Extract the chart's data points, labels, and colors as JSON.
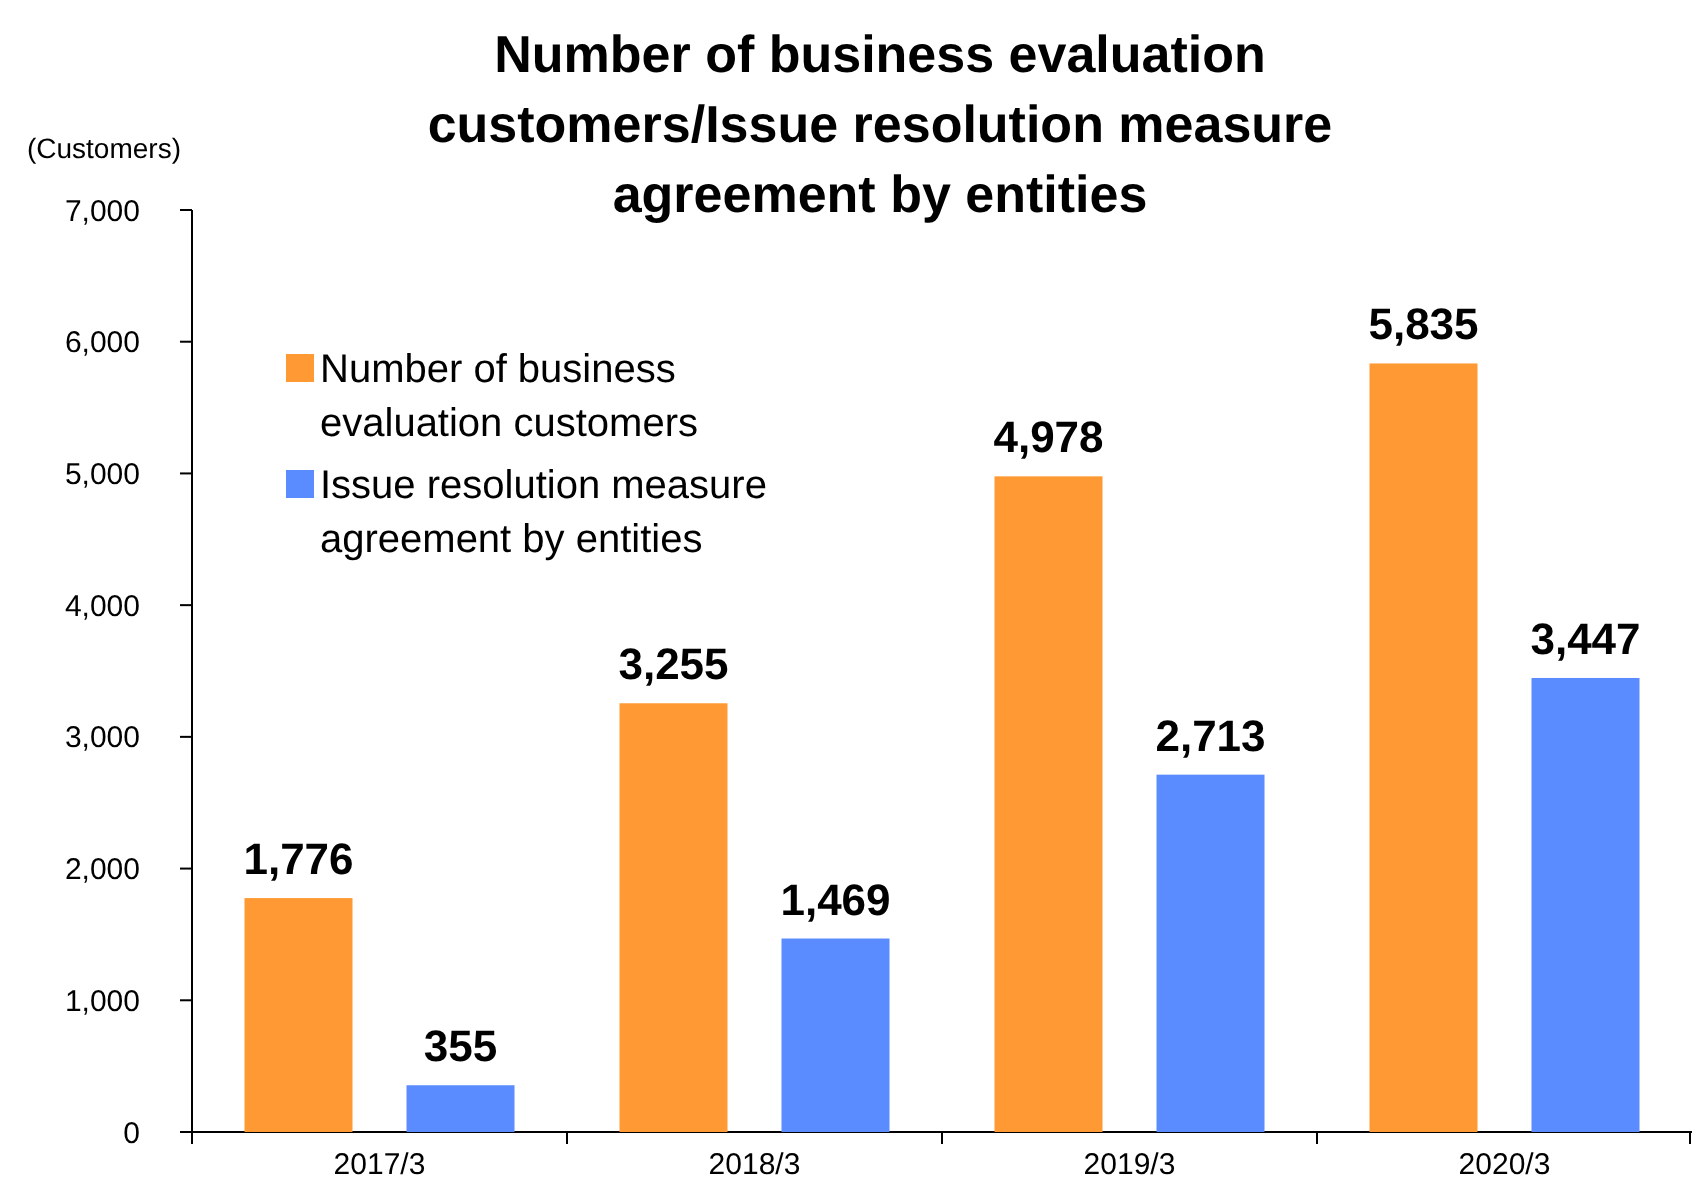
{
  "chart_data": {
    "type": "bar",
    "title": "Number of business evaluation customers/Issue resolution measure agreement by entities",
    "ylabel": "(Customers)",
    "categories": [
      "2017/3",
      "2018/3",
      "2019/3",
      "2020/3"
    ],
    "series": [
      {
        "name": "Number of business evaluation customers",
        "color": "#ff9933",
        "values": [
          1776,
          3255,
          4978,
          5835
        ],
        "value_labels": [
          "1,776",
          "3,255",
          "4,978",
          "5,835"
        ]
      },
      {
        "name": "Issue resolution measure agreement by entities",
        "color": "#5b8cff",
        "values": [
          355,
          1469,
          2713,
          3447
        ],
        "value_labels": [
          "355",
          "1,469",
          "2,713",
          "3,447"
        ]
      }
    ],
    "ylim": [
      0,
      7000
    ],
    "yticks": [
      {
        "value": 0,
        "label": "0"
      },
      {
        "value": 1000,
        "label": "1,000"
      },
      {
        "value": 2000,
        "label": "2,000"
      },
      {
        "value": 3000,
        "label": "3,000"
      },
      {
        "value": 4000,
        "label": "4,000"
      },
      {
        "value": 5000,
        "label": "5,000"
      },
      {
        "value": 6000,
        "label": "6,000"
      },
      {
        "value": 7000,
        "label": "7,000"
      }
    ],
    "legend": "top left",
    "grid": false
  }
}
